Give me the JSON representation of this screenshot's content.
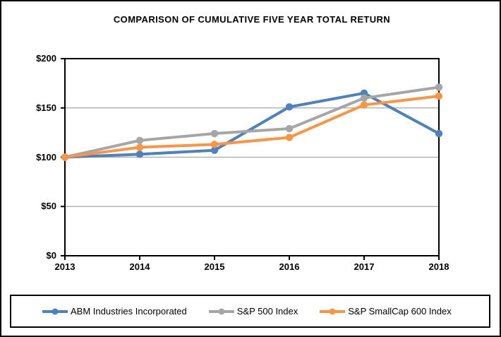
{
  "title": "COMPARISON OF CUMULATIVE FIVE YEAR TOTAL RETURN",
  "chart_data": {
    "type": "line",
    "categories": [
      "2013",
      "2014",
      "2015",
      "2016",
      "2017",
      "2018"
    ],
    "series": [
      {
        "name": "ABM Industries Incorporated",
        "color": "#4F81BD",
        "values": [
          100,
          103,
          107,
          151,
          165,
          124
        ]
      },
      {
        "name": "S&P 500 Index",
        "color": "#A6A6A6",
        "values": [
          100,
          117,
          124,
          129,
          160,
          171
        ]
      },
      {
        "name": "S&P SmallCap 600 Index",
        "color": "#F79646",
        "values": [
          100,
          110,
          113,
          120,
          153,
          162
        ]
      }
    ],
    "xlabel": "",
    "ylabel": "",
    "ylim": [
      0,
      200
    ],
    "ytick_step": 50,
    "ytick_labels": [
      "$0",
      "$50",
      "$100",
      "$150",
      "$200"
    ],
    "grid": "horizontal",
    "gridline_color": "#A6A6A6",
    "axis_color": "#000000",
    "legend_position": "bottom"
  }
}
